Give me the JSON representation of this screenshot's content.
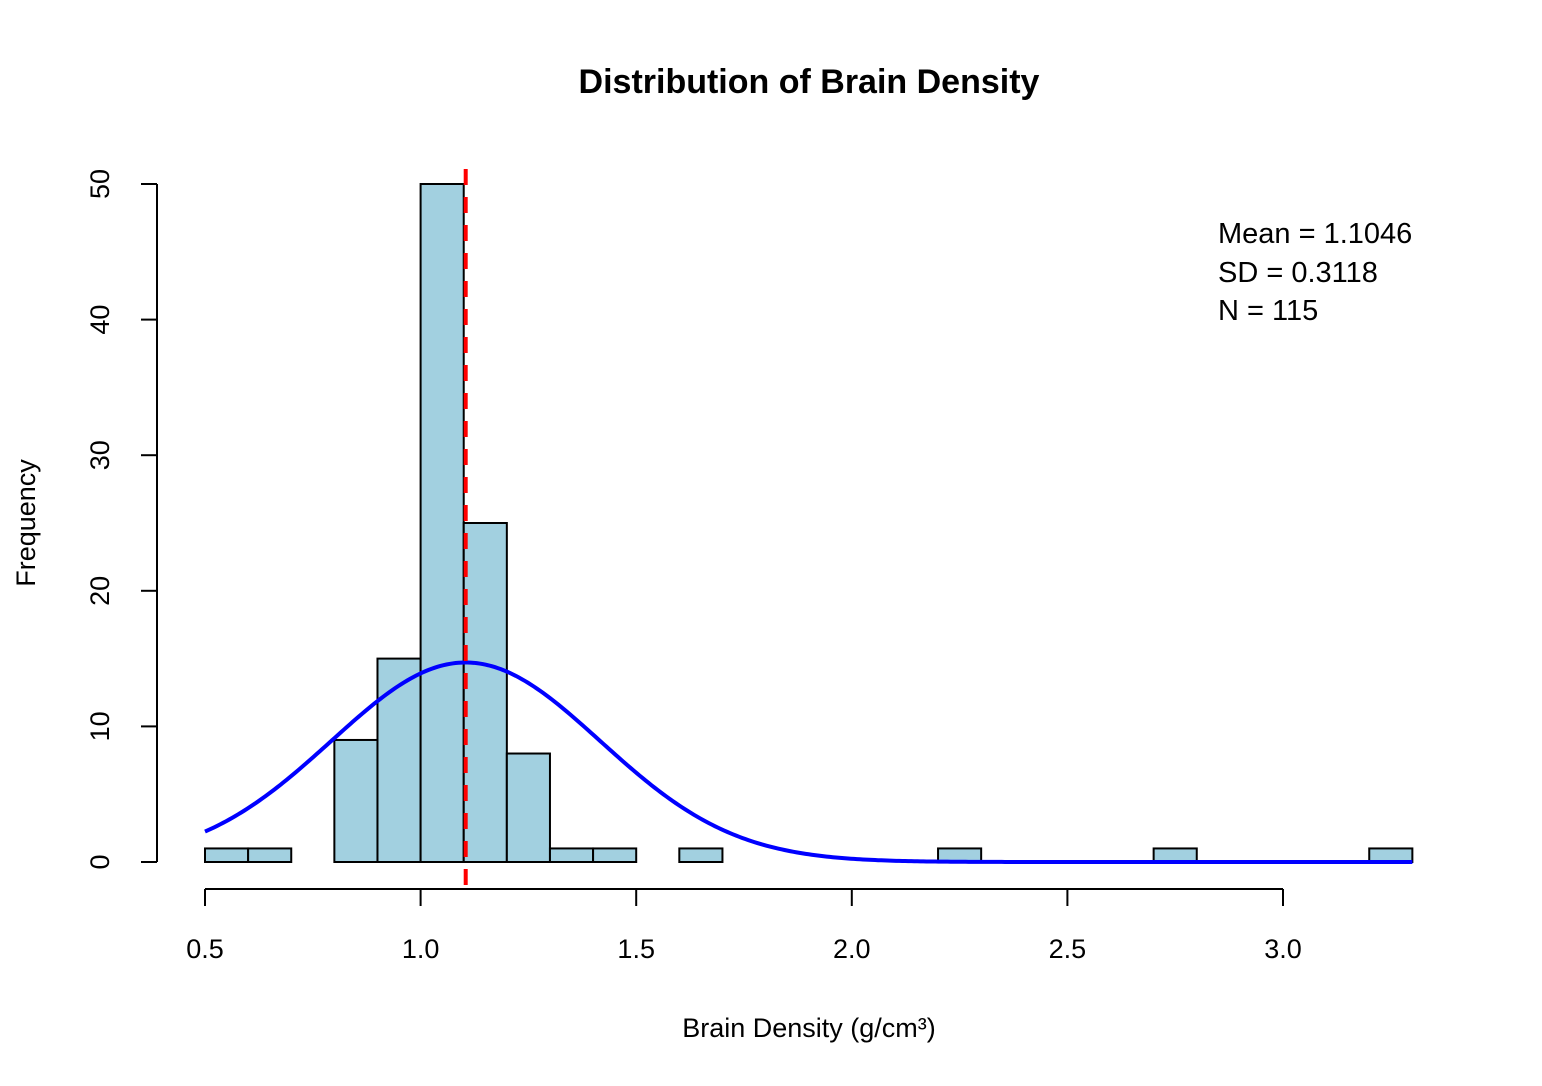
{
  "chart_data": {
    "type": "bar",
    "title": "Distribution of Brain Density",
    "xlabel": "Brain Density (g/cm³)",
    "ylabel": "Frequency",
    "xlim": [
      0.5,
      3.3
    ],
    "ylim": [
      0,
      50
    ],
    "x_ticks": [
      "0.5",
      "1.0",
      "1.5",
      "2.0",
      "2.5",
      "3.0"
    ],
    "x_tick_values": [
      0.5,
      1.0,
      1.5,
      2.0,
      2.5,
      3.0
    ],
    "y_ticks": [
      "0",
      "10",
      "20",
      "30",
      "40",
      "50"
    ],
    "y_tick_values": [
      0,
      10,
      20,
      30,
      40,
      50
    ],
    "bin_width": 0.1,
    "bins": [
      {
        "start": 0.5,
        "end": 0.6,
        "count": 1
      },
      {
        "start": 0.6,
        "end": 0.7,
        "count": 1
      },
      {
        "start": 0.8,
        "end": 0.9,
        "count": 9
      },
      {
        "start": 0.9,
        "end": 1.0,
        "count": 15
      },
      {
        "start": 1.0,
        "end": 1.1,
        "count": 50
      },
      {
        "start": 1.1,
        "end": 1.2,
        "count": 25
      },
      {
        "start": 1.2,
        "end": 1.3,
        "count": 8
      },
      {
        "start": 1.3,
        "end": 1.4,
        "count": 1
      },
      {
        "start": 1.4,
        "end": 1.5,
        "count": 1
      },
      {
        "start": 1.6,
        "end": 1.7,
        "count": 1
      },
      {
        "start": 2.2,
        "end": 2.3,
        "count": 1
      },
      {
        "start": 2.7,
        "end": 2.8,
        "count": 1
      },
      {
        "start": 3.2,
        "end": 3.3,
        "count": 1
      }
    ],
    "normal_curve": {
      "mean": 1.1046,
      "sd": 0.3118,
      "n": 115,
      "color": "#0000ff"
    },
    "mean_line": {
      "value": 1.1046,
      "color": "#ff0000",
      "style": "dashed"
    },
    "bar_color": "#a2d0e0",
    "annotations": [
      "Mean = 1.1046",
      "SD = 0.3118",
      "N = 115"
    ],
    "annotation_placement": "top-right",
    "grid": false
  }
}
